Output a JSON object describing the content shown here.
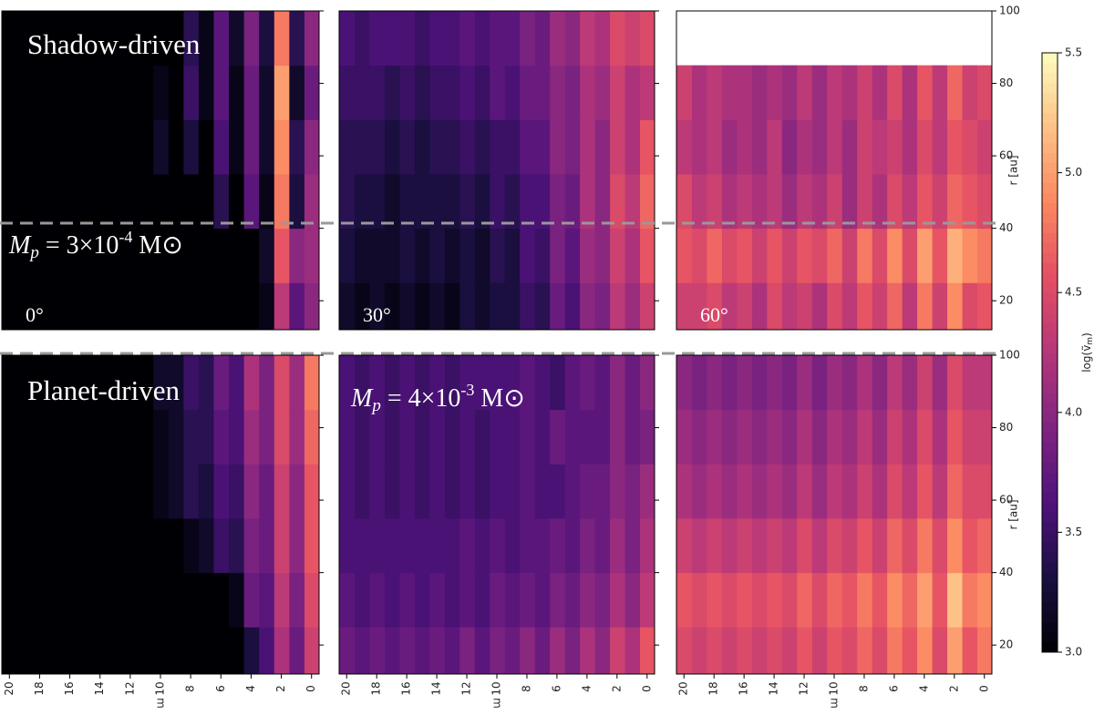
{
  "chart_data": {
    "type": "heatmap",
    "colormap": "magma",
    "x": [
      0,
      1,
      2,
      3,
      4,
      5,
      6,
      7,
      8,
      9,
      10,
      11,
      12,
      13,
      14,
      15,
      16,
      17,
      18,
      19,
      20
    ],
    "xlim": [
      20.5,
      -0.5
    ],
    "xticks": [
      20,
      18,
      16,
      14,
      12,
      10,
      8,
      6,
      4,
      2,
      0
    ],
    "xlabel": "m",
    "y_bins": [
      12,
      25,
      40,
      55,
      70,
      85,
      100
    ],
    "ylim": [
      12,
      100
    ],
    "yticks": [
      20,
      40,
      60,
      80,
      100
    ],
    "ylabel": "r [au]",
    "colorbar": {
      "label": {
        "pre": "log(ṽ",
        "sub": "m",
        "post": ")"
      },
      "lim": [
        3.0,
        5.5
      ],
      "ticks": [
        {
          "value": 3.0,
          "label": "3.0"
        },
        {
          "value": 3.5,
          "label": "3.5"
        },
        {
          "value": 4.0,
          "label": "4.0"
        },
        {
          "value": 4.5,
          "label": "4.5"
        },
        {
          "value": 5.0,
          "label": "5.0"
        },
        {
          "value": 5.5,
          "label": "5.5"
        }
      ]
    },
    "row_labels": [
      "Shadow-driven",
      "Planet-driven"
    ],
    "annotations": [
      {
        "sym": "M",
        "sub": "p",
        "text": " = 3×10",
        "exp": "-4",
        "unit": " M⊙"
      },
      {
        "sym": "M",
        "sub": "p",
        "text": " = 4×10",
        "exp": "-3",
        "unit": " M⊙"
      }
    ],
    "panels": [
      {
        "angle": "0°",
        "z": [
          [
            4.0,
            3.7,
            4.3,
            3.1,
            3.0,
            3.0,
            3.0,
            3.0,
            3.0,
            3.0,
            3.0,
            3.0,
            3.0,
            3.0,
            3.0,
            3.0,
            3.0,
            3.0,
            3.0,
            3.0,
            3.0
          ],
          [
            4.1,
            4.0,
            4.6,
            3.2,
            3.0,
            3.0,
            3.0,
            3.0,
            3.0,
            3.0,
            3.0,
            3.0,
            3.0,
            3.0,
            3.0,
            3.0,
            3.0,
            3.0,
            3.0,
            3.0,
            3.0
          ],
          [
            4.1,
            3.3,
            4.8,
            3.1,
            3.7,
            3.0,
            3.4,
            3.0,
            3.0,
            3.0,
            3.0,
            3.0,
            3.0,
            3.0,
            3.0,
            3.0,
            3.0,
            3.0,
            3.0,
            3.0,
            3.0
          ],
          [
            4.0,
            3.4,
            4.9,
            3.2,
            3.8,
            3.1,
            3.6,
            3.0,
            3.3,
            3.0,
            3.2,
            3.0,
            3.0,
            3.0,
            3.0,
            3.0,
            3.0,
            3.0,
            3.0,
            3.0,
            3.0
          ],
          [
            3.8,
            3.2,
            5.0,
            3.2,
            3.8,
            3.1,
            3.7,
            3.1,
            3.5,
            3.0,
            3.1,
            3.0,
            3.0,
            3.0,
            3.0,
            3.0,
            3.0,
            3.0,
            3.0,
            3.0,
            3.0
          ],
          [
            4.0,
            3.4,
            4.8,
            3.3,
            3.9,
            3.2,
            3.7,
            3.1,
            3.4,
            3.0,
            3.0,
            3.0,
            3.0,
            3.0,
            3.0,
            3.0,
            3.0,
            3.0,
            3.0,
            3.0,
            3.0
          ]
        ]
      },
      {
        "angle": "30°",
        "z": [
          [
            4.4,
            4.1,
            4.3,
            3.9,
            4.0,
            3.6,
            3.8,
            3.4,
            3.5,
            3.3,
            3.3,
            3.2,
            3.3,
            3.1,
            3.2,
            3.1,
            3.2,
            3.1,
            3.2,
            3.1,
            3.2
          ],
          [
            4.6,
            4.2,
            4.4,
            4.0,
            4.1,
            3.7,
            3.9,
            3.5,
            3.6,
            3.3,
            3.4,
            3.2,
            3.3,
            3.2,
            3.3,
            3.2,
            3.3,
            3.2,
            3.2,
            3.2,
            3.3
          ],
          [
            4.7,
            4.3,
            4.5,
            4.0,
            4.2,
            3.8,
            3.9,
            3.6,
            3.6,
            3.4,
            3.5,
            3.3,
            3.4,
            3.3,
            3.3,
            3.3,
            3.3,
            3.2,
            3.3,
            3.3,
            3.4
          ],
          [
            4.6,
            4.2,
            4.4,
            4.0,
            4.2,
            3.9,
            4.0,
            3.7,
            3.7,
            3.5,
            3.5,
            3.4,
            3.5,
            3.4,
            3.4,
            3.3,
            3.4,
            3.3,
            3.4,
            3.4,
            3.4
          ],
          [
            4.3,
            4.2,
            4.4,
            4.1,
            4.2,
            3.9,
            4.0,
            3.8,
            3.8,
            3.6,
            3.7,
            3.5,
            3.6,
            3.5,
            3.5,
            3.4,
            3.5,
            3.4,
            3.5,
            3.5,
            3.5
          ],
          [
            4.5,
            4.4,
            4.5,
            4.2,
            4.3,
            4.0,
            4.1,
            3.8,
            3.9,
            3.7,
            3.7,
            3.6,
            3.7,
            3.6,
            3.6,
            3.5,
            3.6,
            3.6,
            3.6,
            3.5,
            3.6
          ]
        ]
      },
      {
        "angle": "60°",
        "z": [
          [
            4.6,
            4.5,
            4.9,
            4.4,
            4.8,
            4.3,
            4.7,
            4.4,
            4.6,
            4.3,
            4.5,
            4.2,
            4.4,
            4.3,
            4.5,
            4.2,
            4.4,
            4.3,
            4.5,
            4.4,
            4.4
          ],
          [
            4.8,
            4.9,
            5.1,
            4.6,
            5.0,
            4.5,
            4.9,
            4.5,
            4.8,
            4.4,
            4.7,
            4.5,
            4.6,
            4.4,
            4.6,
            4.4,
            4.6,
            4.5,
            4.7,
            4.5,
            4.6
          ],
          [
            4.5,
            4.6,
            4.7,
            4.4,
            4.6,
            4.3,
            4.5,
            4.2,
            4.4,
            4.1,
            4.4,
            4.2,
            4.3,
            4.1,
            4.3,
            4.2,
            4.3,
            4.2,
            4.4,
            4.3,
            4.5
          ],
          [
            4.4,
            4.5,
            4.6,
            4.3,
            4.5,
            4.2,
            4.4,
            4.3,
            4.4,
            4.1,
            4.3,
            4.1,
            4.2,
            4.0,
            4.3,
            4.1,
            4.2,
            4.1,
            4.3,
            4.2,
            4.3
          ],
          [
            4.5,
            4.4,
            4.7,
            4.3,
            4.6,
            4.2,
            4.5,
            4.2,
            4.4,
            4.2,
            4.3,
            4.1,
            4.3,
            4.1,
            4.2,
            4.1,
            4.2,
            4.2,
            4.3,
            4.2,
            4.4
          ],
          [
            null,
            null,
            null,
            null,
            null,
            null,
            null,
            null,
            null,
            null,
            null,
            null,
            null,
            null,
            null,
            null,
            null,
            null,
            null,
            null,
            null
          ]
        ]
      },
      {
        "angle": null,
        "z": [
          [
            4.4,
            3.8,
            4.2,
            3.6,
            3.3,
            3.0,
            3.0,
            3.0,
            3.0,
            3.0,
            3.0,
            3.0,
            3.0,
            3.0,
            3.0,
            3.0,
            3.0,
            3.0,
            3.0,
            3.0,
            3.0
          ],
          [
            4.5,
            3.9,
            4.3,
            3.7,
            3.8,
            3.1,
            3.0,
            3.0,
            3.0,
            3.0,
            3.0,
            3.0,
            3.0,
            3.0,
            3.0,
            3.0,
            3.0,
            3.0,
            3.0,
            3.0,
            3.0
          ],
          [
            4.6,
            4.0,
            4.4,
            3.8,
            3.9,
            3.4,
            3.5,
            3.2,
            3.1,
            3.0,
            3.0,
            3.0,
            3.0,
            3.0,
            3.0,
            3.0,
            3.0,
            3.0,
            3.0,
            3.0,
            3.0
          ],
          [
            4.6,
            4.0,
            4.4,
            3.8,
            4.0,
            3.5,
            3.6,
            3.3,
            3.4,
            3.2,
            3.1,
            3.0,
            3.0,
            3.0,
            3.0,
            3.0,
            3.0,
            3.0,
            3.0,
            3.0,
            3.0
          ],
          [
            4.7,
            4.1,
            4.5,
            3.9,
            4.1,
            3.6,
            3.7,
            3.4,
            3.4,
            3.2,
            3.1,
            3.0,
            3.0,
            3.0,
            3.0,
            3.0,
            3.0,
            3.0,
            3.0,
            3.0,
            3.0
          ],
          [
            4.8,
            4.1,
            4.5,
            3.9,
            4.2,
            3.6,
            3.8,
            3.4,
            3.5,
            3.2,
            3.2,
            3.0,
            3.0,
            3.0,
            3.0,
            3.0,
            3.0,
            3.0,
            3.0,
            3.0,
            3.0
          ]
        ]
      },
      {
        "angle": null,
        "z": [
          [
            4.6,
            4.2,
            4.4,
            4.0,
            4.2,
            3.9,
            4.1,
            3.8,
            4.0,
            3.8,
            3.9,
            3.7,
            3.9,
            3.7,
            3.8,
            3.7,
            3.8,
            3.7,
            3.8,
            3.7,
            3.8
          ],
          [
            4.3,
            4.0,
            4.2,
            3.9,
            4.0,
            3.8,
            3.9,
            3.7,
            3.8,
            3.7,
            3.8,
            3.6,
            3.7,
            3.6,
            3.7,
            3.6,
            3.7,
            3.6,
            3.7,
            3.6,
            3.7
          ],
          [
            4.2,
            3.9,
            4.1,
            3.8,
            3.9,
            3.7,
            3.8,
            3.7,
            3.7,
            3.6,
            3.7,
            3.6,
            3.7,
            3.6,
            3.6,
            3.6,
            3.6,
            3.6,
            3.6,
            3.6,
            3.6
          ],
          [
            4.1,
            3.9,
            4.0,
            3.8,
            3.8,
            3.7,
            3.6,
            3.6,
            3.7,
            3.6,
            3.6,
            3.5,
            3.6,
            3.5,
            3.6,
            3.5,
            3.6,
            3.5,
            3.6,
            3.5,
            3.6
          ],
          [
            3.9,
            3.8,
            4.0,
            3.7,
            3.7,
            3.7,
            3.8,
            3.6,
            3.7,
            3.6,
            3.6,
            3.5,
            3.6,
            3.5,
            3.6,
            3.5,
            3.6,
            3.5,
            3.6,
            3.5,
            3.6
          ],
          [
            4.0,
            3.8,
            4.0,
            3.7,
            3.8,
            3.7,
            3.5,
            3.6,
            3.7,
            3.6,
            3.6,
            3.6,
            3.6,
            3.5,
            3.6,
            3.5,
            3.6,
            3.5,
            3.6,
            3.5,
            3.6
          ]
        ]
      },
      {
        "angle": null,
        "z": [
          [
            4.8,
            4.6,
            5.0,
            4.5,
            4.9,
            4.6,
            4.8,
            4.5,
            4.7,
            4.5,
            4.6,
            4.4,
            4.6,
            4.4,
            4.5,
            4.4,
            4.5,
            4.4,
            4.5,
            4.4,
            4.5
          ],
          [
            4.9,
            4.8,
            5.2,
            4.6,
            5.0,
            4.7,
            4.9,
            4.6,
            4.8,
            4.6,
            4.7,
            4.5,
            4.7,
            4.5,
            4.6,
            4.5,
            4.6,
            4.5,
            4.6,
            4.5,
            4.6
          ],
          [
            4.7,
            4.6,
            4.9,
            4.5,
            4.8,
            4.5,
            4.7,
            4.4,
            4.6,
            4.4,
            4.5,
            4.3,
            4.5,
            4.3,
            4.4,
            4.3,
            4.4,
            4.3,
            4.4,
            4.3,
            4.4
          ],
          [
            4.5,
            4.5,
            4.7,
            4.3,
            4.6,
            4.3,
            4.5,
            4.2,
            4.4,
            4.2,
            4.3,
            4.1,
            4.3,
            4.1,
            4.2,
            4.1,
            4.2,
            4.1,
            4.2,
            4.1,
            4.2
          ],
          [
            4.4,
            4.4,
            4.6,
            4.2,
            4.5,
            4.2,
            4.4,
            4.1,
            4.3,
            4.1,
            4.2,
            4.0,
            4.2,
            4.0,
            4.1,
            4.0,
            4.1,
            4.0,
            4.1,
            4.0,
            4.1
          ],
          [
            4.3,
            4.3,
            4.5,
            4.1,
            4.4,
            4.1,
            4.3,
            4.0,
            4.2,
            4.0,
            4.1,
            3.9,
            4.1,
            3.9,
            4.0,
            3.9,
            4.0,
            3.9,
            4.0,
            3.9,
            4.0
          ]
        ]
      }
    ]
  }
}
